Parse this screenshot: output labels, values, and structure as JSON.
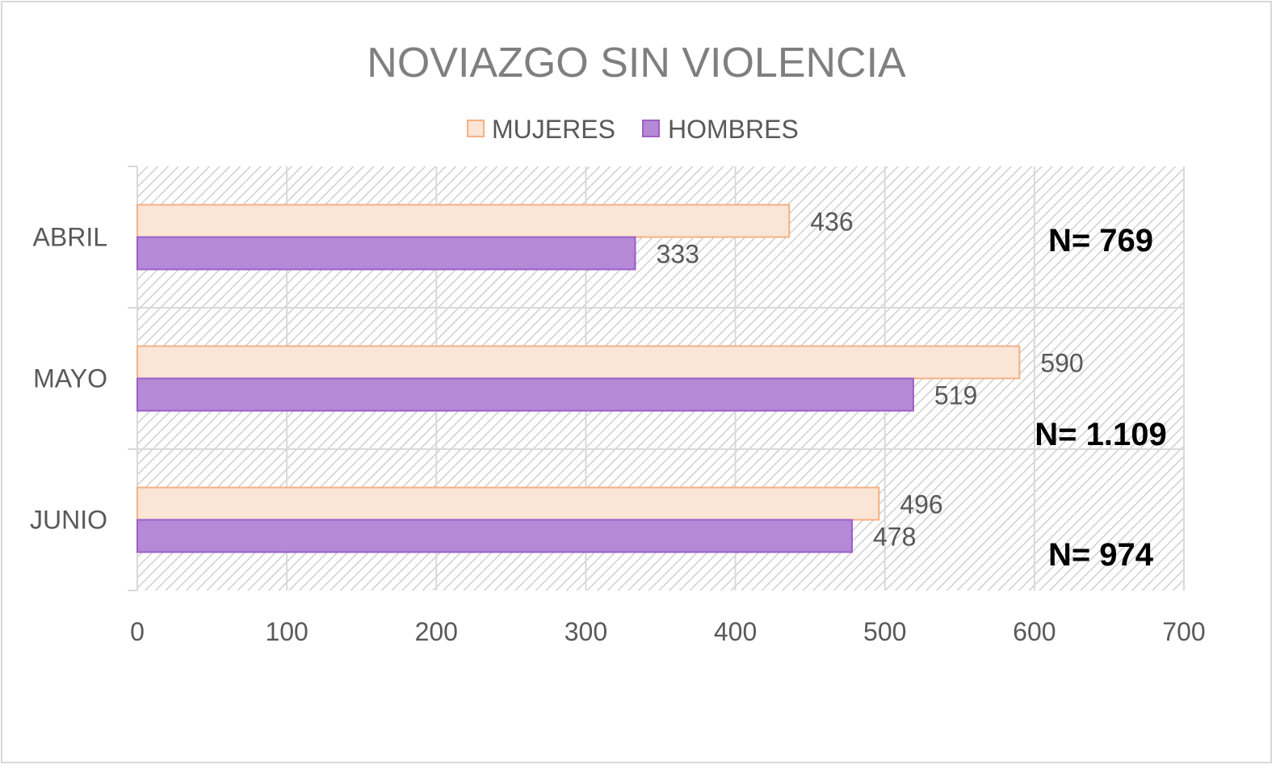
{
  "chart_data": {
    "type": "bar",
    "orientation": "horizontal",
    "title": "NOVIAZGO SIN VIOLENCIA",
    "categories": [
      "ABRIL",
      "MAYO",
      "JUNIO"
    ],
    "series": [
      {
        "name": "MUJERES",
        "values": [
          436,
          590,
          496
        ],
        "color": "#fbe5d6",
        "stroke": "#f4b183"
      },
      {
        "name": "HOMBRES",
        "values": [
          333,
          519,
          478
        ],
        "color": "#b589d6",
        "stroke": "#9e5ec9"
      }
    ],
    "xlim": [
      0,
      700
    ],
    "xticks": [
      "0",
      "100",
      "200",
      "300",
      "400",
      "500",
      "600",
      "700"
    ],
    "totals": [
      "N= 769",
      "N= 1.109",
      "N= 974"
    ],
    "grid": true,
    "legend": "top"
  }
}
